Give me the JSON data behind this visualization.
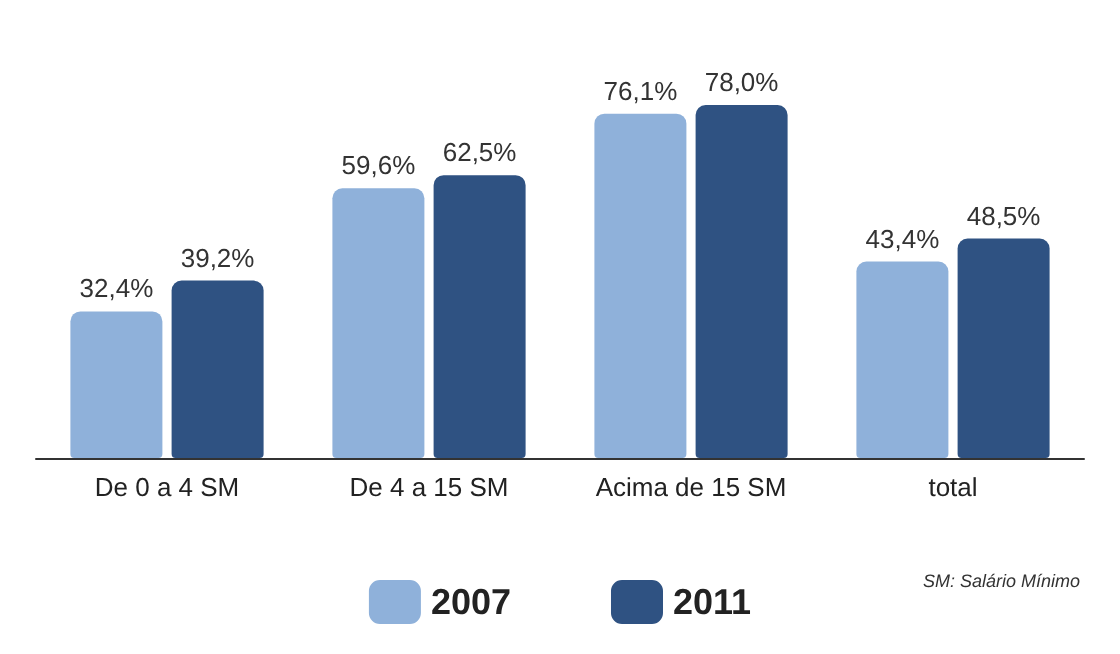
{
  "chart_data": {
    "type": "bar",
    "categories": [
      "De 0 a 4 SM",
      "De 4 a 15 SM",
      "Acima de 15 SM",
      "total"
    ],
    "series": [
      {
        "name": "2007",
        "color": "#8fb1da",
        "values": [
          32.4,
          59.6,
          76.1,
          43.4
        ],
        "value_labels": [
          "32,4%",
          "59,6%",
          "76,1%",
          "43,4%"
        ]
      },
      {
        "name": "2011",
        "color": "#2f5282",
        "values": [
          39.2,
          62.5,
          78.0,
          48.5
        ],
        "value_labels": [
          "39,2%",
          "62,5%",
          "78,0%",
          "48,5%"
        ]
      }
    ],
    "annotations": [
      "SM: Salário Mínimo"
    ],
    "legend": "bottom"
  }
}
